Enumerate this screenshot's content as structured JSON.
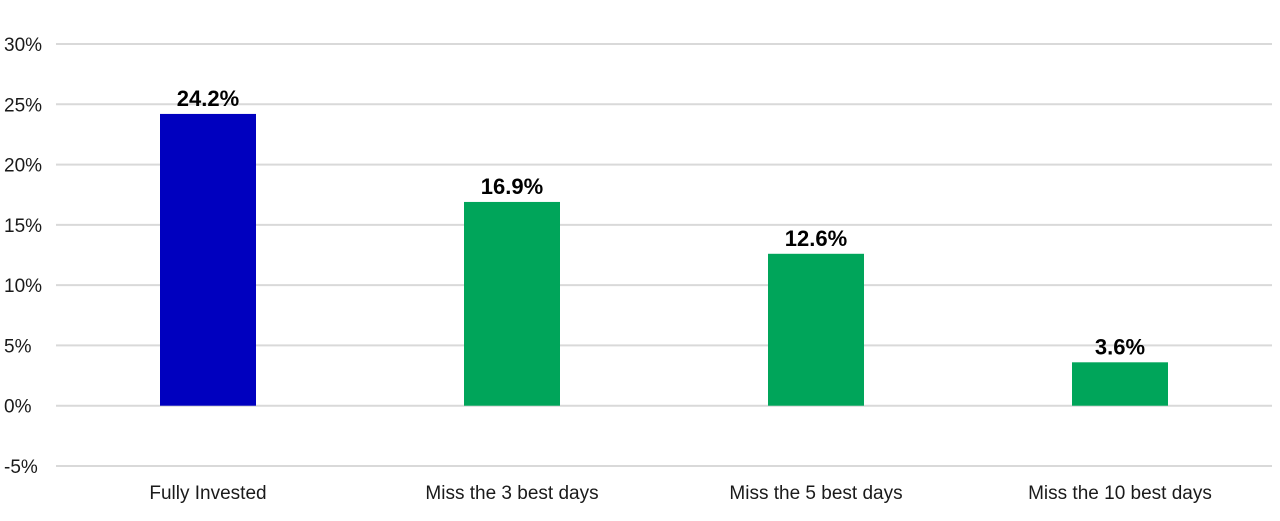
{
  "chart_data": {
    "type": "bar",
    "categories": [
      "Fully Invested",
      "Miss the 3 best days",
      "Miss the 5 best days",
      "Miss the 10 best days"
    ],
    "values": [
      24.2,
      16.9,
      12.6,
      3.6
    ],
    "data_labels": [
      "24.2%",
      "16.9%",
      "12.6%",
      "3.6%"
    ],
    "bar_colors": [
      "#0000bf",
      "#00a55a",
      "#00a55a",
      "#00a55a"
    ],
    "ylim": [
      -5,
      30
    ],
    "yticks": [
      30,
      25,
      20,
      15,
      10,
      5,
      0,
      -5
    ],
    "ytick_labels": [
      "30%",
      "25%",
      "20%",
      "15%",
      "10%",
      "5%",
      "0%",
      "-5%"
    ],
    "grid": true,
    "title": "",
    "xlabel": "",
    "ylabel": ""
  }
}
